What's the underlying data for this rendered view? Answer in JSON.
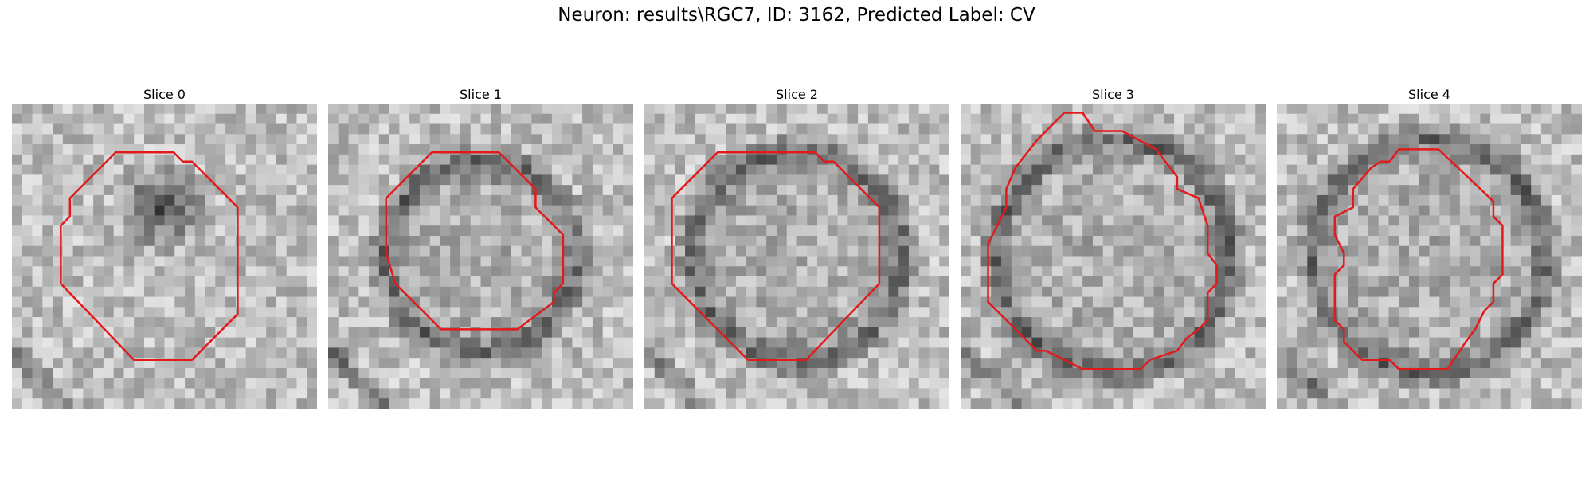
{
  "figure": {
    "title": "Neuron: results\\RGC7, ID: 3162, Predicted Label: CV"
  },
  "palette": {
    "background": "#ffffff",
    "contour": "#e31a1c"
  },
  "panels": [
    {
      "title": "Slice 0",
      "image": {
        "dark_center": [
          0.49,
          0.34
        ],
        "dark_radius": 0.17,
        "ring": false
      },
      "contour": [
        [
          0.34,
          0.16
        ],
        [
          0.53,
          0.16
        ],
        [
          0.56,
          0.19
        ],
        [
          0.59,
          0.19
        ],
        [
          0.74,
          0.34
        ],
        [
          0.74,
          0.69
        ],
        [
          0.59,
          0.84
        ],
        [
          0.4,
          0.84
        ],
        [
          0.16,
          0.59
        ],
        [
          0.16,
          0.4
        ],
        [
          0.19,
          0.37
        ],
        [
          0.19,
          0.31
        ]
      ]
    },
    {
      "title": "Slice 1",
      "image": {
        "dark_center": [
          0.5,
          0.5
        ],
        "dark_radius": 0.31,
        "ring": true
      },
      "contour": [
        [
          0.34,
          0.16
        ],
        [
          0.56,
          0.16
        ],
        [
          0.68,
          0.28
        ],
        [
          0.68,
          0.34
        ],
        [
          0.77,
          0.43
        ],
        [
          0.77,
          0.59
        ],
        [
          0.74,
          0.62
        ],
        [
          0.74,
          0.65
        ],
        [
          0.62,
          0.74
        ],
        [
          0.37,
          0.74
        ],
        [
          0.22,
          0.59
        ],
        [
          0.19,
          0.49
        ],
        [
          0.19,
          0.31
        ]
      ]
    },
    {
      "title": "Slice 2",
      "image": {
        "dark_center": [
          0.5,
          0.5
        ],
        "dark_radius": 0.34,
        "ring": true
      },
      "contour": [
        [
          0.24,
          0.16
        ],
        [
          0.56,
          0.16
        ],
        [
          0.59,
          0.19
        ],
        [
          0.62,
          0.19
        ],
        [
          0.77,
          0.34
        ],
        [
          0.77,
          0.59
        ],
        [
          0.53,
          0.84
        ],
        [
          0.34,
          0.84
        ],
        [
          0.09,
          0.59
        ],
        [
          0.09,
          0.31
        ]
      ]
    },
    {
      "title": "Slice 3",
      "image": {
        "dark_center": [
          0.5,
          0.5
        ],
        "dark_radius": 0.38,
        "ring": true
      },
      "contour": [
        [
          0.31,
          0.06
        ],
        [
          0.34,
          0.03
        ],
        [
          0.4,
          0.03
        ],
        [
          0.44,
          0.09
        ],
        [
          0.53,
          0.09
        ],
        [
          0.64,
          0.15
        ],
        [
          0.71,
          0.24
        ],
        [
          0.71,
          0.28
        ],
        [
          0.78,
          0.31
        ],
        [
          0.81,
          0.4
        ],
        [
          0.81,
          0.49
        ],
        [
          0.84,
          0.53
        ],
        [
          0.84,
          0.59
        ],
        [
          0.81,
          0.62
        ],
        [
          0.81,
          0.71
        ],
        [
          0.78,
          0.74
        ],
        [
          0.74,
          0.77
        ],
        [
          0.71,
          0.81
        ],
        [
          0.62,
          0.84
        ],
        [
          0.59,
          0.87
        ],
        [
          0.4,
          0.87
        ],
        [
          0.34,
          0.84
        ],
        [
          0.28,
          0.81
        ],
        [
          0.25,
          0.81
        ],
        [
          0.12,
          0.68
        ],
        [
          0.09,
          0.65
        ],
        [
          0.09,
          0.46
        ],
        [
          0.12,
          0.4
        ],
        [
          0.15,
          0.34
        ],
        [
          0.15,
          0.28
        ],
        [
          0.18,
          0.21
        ],
        [
          0.25,
          0.12
        ]
      ]
    },
    {
      "title": "Slice 4",
      "image": {
        "dark_center": [
          0.5,
          0.5
        ],
        "dark_radius": 0.38,
        "ring": true
      },
      "contour": [
        [
          0.34,
          0.19
        ],
        [
          0.37,
          0.19
        ],
        [
          0.4,
          0.15
        ],
        [
          0.53,
          0.15
        ],
        [
          0.71,
          0.32
        ],
        [
          0.71,
          0.37
        ],
        [
          0.74,
          0.4
        ],
        [
          0.74,
          0.56
        ],
        [
          0.71,
          0.59
        ],
        [
          0.71,
          0.65
        ],
        [
          0.68,
          0.68
        ],
        [
          0.65,
          0.74
        ],
        [
          0.62,
          0.78
        ],
        [
          0.56,
          0.87
        ],
        [
          0.4,
          0.87
        ],
        [
          0.37,
          0.84
        ],
        [
          0.28,
          0.84
        ],
        [
          0.22,
          0.78
        ],
        [
          0.22,
          0.74
        ],
        [
          0.19,
          0.71
        ],
        [
          0.19,
          0.56
        ],
        [
          0.22,
          0.53
        ],
        [
          0.22,
          0.49
        ],
        [
          0.19,
          0.43
        ],
        [
          0.19,
          0.37
        ],
        [
          0.25,
          0.34
        ],
        [
          0.25,
          0.28
        ],
        [
          0.31,
          0.21
        ]
      ]
    }
  ]
}
